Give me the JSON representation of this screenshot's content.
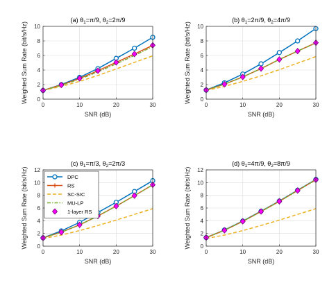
{
  "ylabel": "Weighted Sum Rate (bit/s/Hz)",
  "xlabel": "SNR (dB)",
  "legend": [
    {
      "name": "DPC",
      "color": "#0072BD",
      "style": "solid",
      "marker": "circle"
    },
    {
      "name": "RS",
      "color": "#D95319",
      "style": "solid",
      "marker": "plus"
    },
    {
      "name": "SC-SIC",
      "color": "#EDB120",
      "style": "dashed",
      "marker": "none"
    },
    {
      "name": "MU-LP",
      "color": "#77AC30",
      "style": "dashdot",
      "marker": "none"
    },
    {
      "name": "1-layer RS",
      "color": "#FF00FF",
      "style": "none",
      "marker": "diamond"
    }
  ],
  "chart_data": [
    {
      "type": "line",
      "title": "(a) θ1=π/9, θ2=2π/9",
      "title_parts": {
        "prefix": "(a) ",
        "t1": "=π/9, ",
        "t2": "=2π/9"
      },
      "xlabel": "SNR (dB)",
      "ylabel": "Weighted Sum Rate (bit/s/Hz)",
      "x": [
        0,
        5,
        10,
        15,
        20,
        25,
        30
      ],
      "xticks": [
        0,
        10,
        20,
        30
      ],
      "ylim": [
        0,
        10
      ],
      "yticks": [
        0,
        2,
        4,
        6,
        8,
        10
      ],
      "grid": true,
      "series": [
        {
          "name": "DPC",
          "values": [
            1.2,
            2.0,
            3.0,
            4.2,
            5.6,
            7.0,
            8.5
          ]
        },
        {
          "name": "RS",
          "values": [
            1.2,
            1.95,
            2.85,
            3.9,
            5.05,
            6.2,
            7.4
          ]
        },
        {
          "name": "SC-SIC",
          "values": [
            1.2,
            1.75,
            2.45,
            3.25,
            4.15,
            5.05,
            5.95
          ]
        },
        {
          "name": "MU-LP",
          "values": [
            1.2,
            1.9,
            2.75,
            3.75,
            4.85,
            6.0,
            7.25
          ]
        },
        {
          "name": "1-layer RS",
          "values": [
            1.2,
            1.95,
            2.85,
            3.9,
            5.05,
            6.2,
            7.4
          ]
        }
      ]
    },
    {
      "type": "line",
      "title": "(b) θ1=2π/9, θ2=4π/9",
      "title_parts": {
        "prefix": "(b) ",
        "t1": "=2π/9, ",
        "t2": "=4π/9"
      },
      "xlabel": "SNR (dB)",
      "ylabel": "Weighted Sum Rate (bit/s/Hz)",
      "x": [
        0,
        5,
        10,
        15,
        20,
        25,
        30
      ],
      "xticks": [
        0,
        10,
        20,
        30
      ],
      "ylim": [
        0,
        10
      ],
      "yticks": [
        0,
        2,
        4,
        6,
        8,
        10
      ],
      "grid": true,
      "series": [
        {
          "name": "DPC",
          "values": [
            1.25,
            2.25,
            3.45,
            4.85,
            6.4,
            8.0,
            9.7
          ]
        },
        {
          "name": "RS",
          "values": [
            1.25,
            2.05,
            3.05,
            4.2,
            5.45,
            6.6,
            7.75
          ]
        },
        {
          "name": "SC-SIC",
          "values": [
            1.2,
            1.75,
            2.45,
            3.2,
            4.05,
            4.95,
            5.85
          ]
        },
        {
          "name": "MU-LP",
          "values": [
            1.25,
            2.05,
            3.05,
            4.2,
            5.45,
            6.6,
            7.7
          ]
        },
        {
          "name": "1-layer RS",
          "values": [
            1.25,
            2.05,
            3.05,
            4.2,
            5.45,
            6.6,
            7.75
          ]
        }
      ]
    },
    {
      "type": "line",
      "title": "(c) θ1=π/3, θ2=2π/3",
      "title_parts": {
        "prefix": "(c) ",
        "t1": "=π/3, ",
        "t2": "=2π/3"
      },
      "xlabel": "SNR (dB)",
      "ylabel": "Weighted Sum Rate (bit/s/Hz)",
      "x": [
        0,
        5,
        10,
        15,
        20,
        25,
        30
      ],
      "xticks": [
        0,
        10,
        20,
        30
      ],
      "ylim": [
        0,
        12
      ],
      "yticks": [
        0,
        2,
        4,
        6,
        8,
        10,
        12
      ],
      "grid": true,
      "legend_position": "top-left",
      "series": [
        {
          "name": "DPC",
          "values": [
            1.3,
            2.4,
            3.75,
            5.3,
            6.9,
            8.6,
            10.3
          ]
        },
        {
          "name": "RS",
          "values": [
            1.3,
            2.2,
            3.35,
            4.75,
            6.3,
            7.95,
            9.65
          ]
        },
        {
          "name": "SC-SIC",
          "values": [
            1.2,
            1.75,
            2.45,
            3.25,
            4.1,
            5.0,
            5.9
          ]
        },
        {
          "name": "MU-LP",
          "values": [
            1.3,
            2.2,
            3.35,
            4.75,
            6.3,
            7.95,
            9.65
          ]
        },
        {
          "name": "1-layer RS",
          "values": [
            1.3,
            2.2,
            3.35,
            4.75,
            6.3,
            7.95,
            9.65
          ]
        }
      ]
    },
    {
      "type": "line",
      "title": "(d) θ1=4π/9, θ2=8π/9",
      "title_parts": {
        "prefix": "(d) ",
        "t1": "=4π/9, ",
        "t2": "=8π/9"
      },
      "xlabel": "SNR (dB)",
      "ylabel": "Weighted Sum Rate (bit/s/Hz)",
      "x": [
        0,
        5,
        10,
        15,
        20,
        25,
        30
      ],
      "xticks": [
        0,
        10,
        20,
        30
      ],
      "ylim": [
        0,
        12
      ],
      "yticks": [
        0,
        2,
        4,
        6,
        8,
        10,
        12
      ],
      "grid": true,
      "series": [
        {
          "name": "DPC",
          "values": [
            1.35,
            2.55,
            3.95,
            5.5,
            7.1,
            8.8,
            10.5
          ]
        },
        {
          "name": "RS",
          "values": [
            1.35,
            2.5,
            3.9,
            5.45,
            7.05,
            8.75,
            10.45
          ]
        },
        {
          "name": "SC-SIC",
          "values": [
            1.2,
            1.75,
            2.45,
            3.25,
            4.1,
            5.0,
            5.9
          ]
        },
        {
          "name": "MU-LP",
          "values": [
            1.35,
            2.5,
            3.9,
            5.45,
            7.05,
            8.75,
            10.45
          ]
        },
        {
          "name": "1-layer RS",
          "values": [
            1.35,
            2.5,
            3.9,
            5.45,
            7.05,
            8.75,
            10.45
          ]
        }
      ]
    }
  ]
}
